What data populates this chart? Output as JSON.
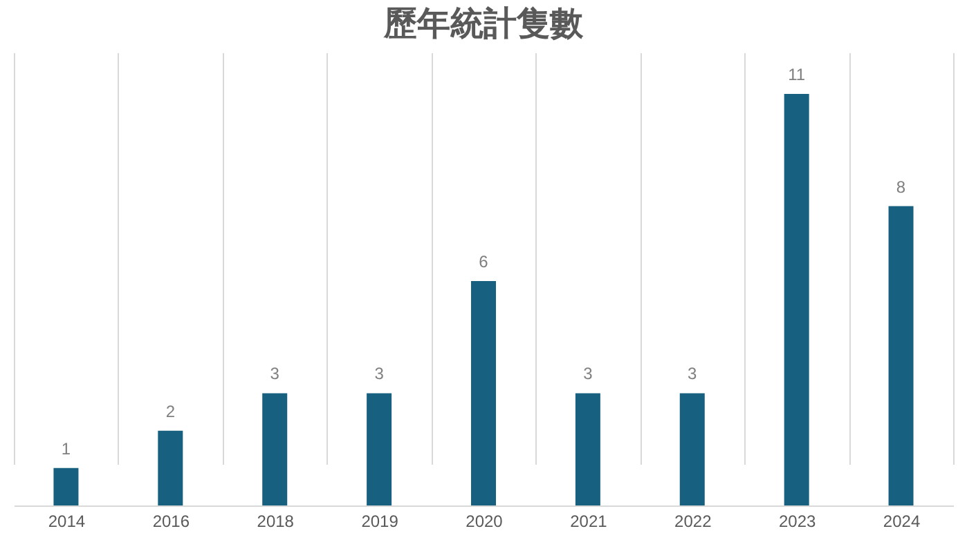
{
  "chart_data": {
    "type": "bar",
    "title": "歷年統計隻數",
    "categories": [
      "2014",
      "2016",
      "2018",
      "2019",
      "2020",
      "2021",
      "2022",
      "2023",
      "2024"
    ],
    "values": [
      1,
      2,
      3,
      3,
      6,
      3,
      3,
      11,
      8
    ],
    "color": "#17607f",
    "data_labels": true,
    "grid": "x"
  }
}
